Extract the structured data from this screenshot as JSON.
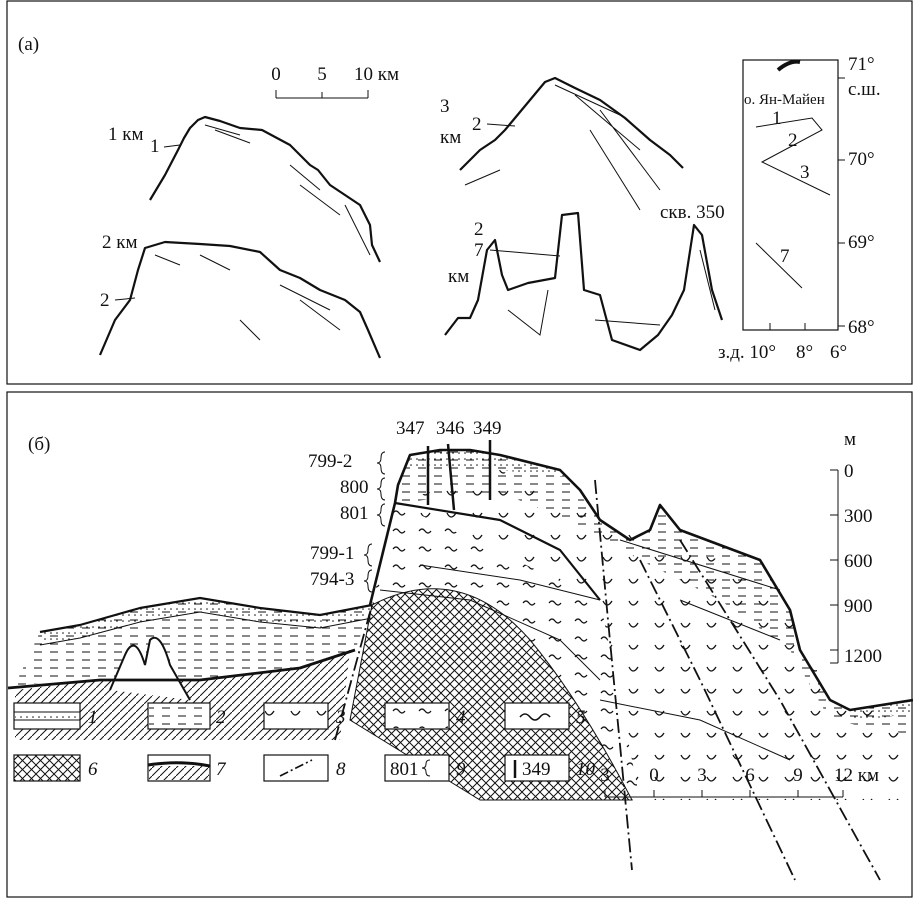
{
  "panel_a": {
    "label": "(a)",
    "scale_labels": [
      "0",
      "5",
      "10 км"
    ],
    "profile_1": {
      "depth": "1 км",
      "label": "1"
    },
    "profile_2": {
      "depth": "2 км",
      "label": "2"
    },
    "profile_3": {
      "number": "3",
      "unit": "км",
      "label": "2"
    },
    "profile_7": {
      "labels": [
        "2",
        "7"
      ],
      "unit": "км",
      "well": "скв. 350"
    },
    "inset": {
      "island": "о. Ян-Майен",
      "lat_unit": "с.ш.",
      "lat_labels": [
        "71°",
        "70°",
        "69°",
        "68°"
      ],
      "lon_labels": [
        "з.д. 10°",
        "8°",
        "6°"
      ],
      "track_labels": [
        "1",
        "2",
        "3",
        "7"
      ]
    }
  },
  "panel_b": {
    "label": "(б)",
    "wells": [
      "347",
      "346",
      "349"
    ],
    "units": [
      "799-2",
      "800",
      "801",
      "799-1",
      "794-3"
    ],
    "depth_unit": "м",
    "depth_labels": [
      "0",
      "300",
      "600",
      "900",
      "1200"
    ],
    "legend": [
      {
        "number": "1"
      },
      {
        "number": "2"
      },
      {
        "number": "3"
      },
      {
        "number": "4"
      },
      {
        "number": "5"
      },
      {
        "number": "6"
      },
      {
        "number": "7"
      },
      {
        "number": "8"
      },
      {
        "number": "9",
        "code": "801"
      },
      {
        "number": "10",
        "code": "349"
      }
    ],
    "scale_labels": [
      "3",
      "0",
      "3",
      "6",
      "9",
      "12 км"
    ]
  }
}
